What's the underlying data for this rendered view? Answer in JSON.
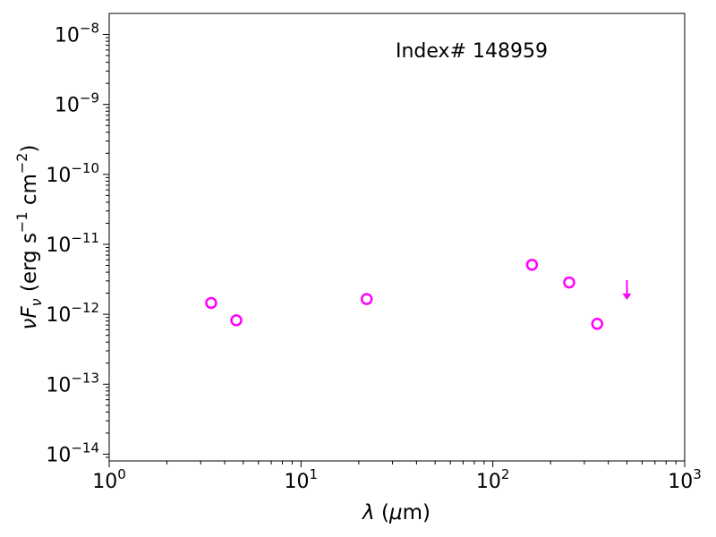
{
  "chart_data": {
    "type": "scatter",
    "annotation": "Index# 148959",
    "xlabel": "λ (μm)",
    "ylabel": "νFν (erg s⁻¹ cm⁻²)",
    "x_scale": "log",
    "y_scale": "log",
    "xlim": [
      1,
      1000
    ],
    "ylim": [
      8e-15,
      2e-08
    ],
    "grid": false,
    "marker_color": "#ff00ff",
    "x_ticks": [
      {
        "value": 1,
        "base": "10",
        "exp": "0"
      },
      {
        "value": 10,
        "base": "10",
        "exp": "1"
      },
      {
        "value": 100,
        "base": "10",
        "exp": "2"
      },
      {
        "value": 1000,
        "base": "10",
        "exp": "3"
      }
    ],
    "y_ticks": [
      {
        "value": 1e-14,
        "base": "10",
        "exp": "−14"
      },
      {
        "value": 1e-13,
        "base": "10",
        "exp": "−13"
      },
      {
        "value": 1e-12,
        "base": "10",
        "exp": "−12"
      },
      {
        "value": 1e-11,
        "base": "10",
        "exp": "−11"
      },
      {
        "value": 1e-10,
        "base": "10",
        "exp": "−10"
      },
      {
        "value": 1e-09,
        "base": "10",
        "exp": "−9"
      },
      {
        "value": 1e-08,
        "base": "10",
        "exp": "−8"
      }
    ],
    "points": [
      {
        "x": 3.4,
        "y": 1.45e-12
      },
      {
        "x": 4.6,
        "y": 8.2e-13
      },
      {
        "x": 22,
        "y": 1.65e-12
      },
      {
        "x": 160,
        "y": 5.1e-12
      },
      {
        "x": 250,
        "y": 2.85e-12
      },
      {
        "x": 350,
        "y": 7.3e-13
      }
    ],
    "upper_limits": [
      {
        "x": 500,
        "y": 2.5e-12
      }
    ]
  }
}
